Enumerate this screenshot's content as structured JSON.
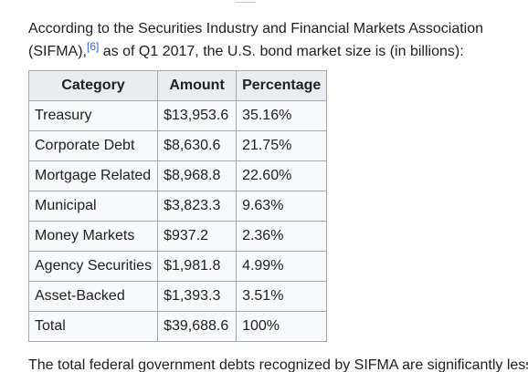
{
  "intro": {
    "text_before": "According to the Securities Industry and Financial Markets Association (SIFMA),",
    "citation": "[6]",
    "text_after": " as of Q1 2017, the U.S. bond market size is (in billions):"
  },
  "table": {
    "headers": [
      "Category",
      "Amount",
      "Percentage"
    ],
    "rows": [
      [
        "Treasury",
        "$13,953.6",
        "35.16%"
      ],
      [
        "Corporate Debt",
        "$8,630.6",
        "21.75%"
      ],
      [
        "Mortgage Related",
        "$8,968.8",
        "22.60%"
      ],
      [
        "Municipal",
        "$3,823.3",
        "9.63%"
      ],
      [
        "Money Markets",
        "$937.2",
        "2.36%"
      ],
      [
        "Agency Securities",
        "$1,981.8",
        "4.99%"
      ],
      [
        "Asset-Backed",
        "$1,393.3",
        "3.51%"
      ],
      [
        "Total",
        "$39,688.6",
        "100%"
      ]
    ]
  },
  "outro": {
    "text": "The total federal government debts recognized by SIFMA are significantly less"
  },
  "colors": {
    "link": "#3366cc",
    "text": "#202122",
    "border": "#a2a9b1",
    "header_bg": "#eaecf0",
    "cell_bg": "#f8f9fa"
  }
}
